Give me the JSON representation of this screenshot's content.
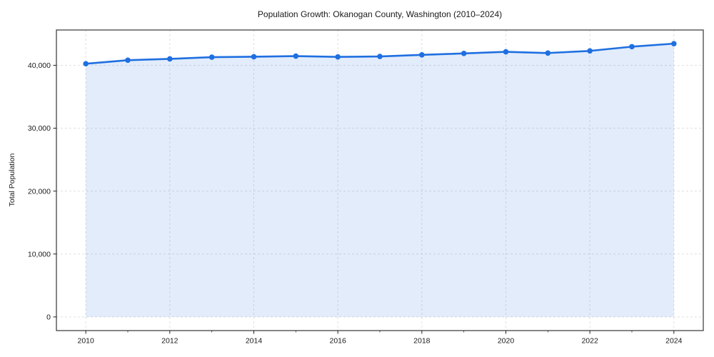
{
  "chart_data": {
    "type": "line",
    "title": "Population Growth: Okanogan County, Washington (2010–2024)",
    "xlabel": "",
    "ylabel": "Total Population",
    "x": [
      2010,
      2011,
      2012,
      2013,
      2014,
      2015,
      2016,
      2017,
      2018,
      2019,
      2020,
      2021,
      2022,
      2023,
      2024
    ],
    "series": [
      {
        "name": "Total Population",
        "values": [
          40250,
          40810,
          41020,
          41290,
          41360,
          41460,
          41330,
          41410,
          41660,
          41890,
          42140,
          41950,
          42290,
          42960,
          43440
        ]
      }
    ],
    "xticks": [
      2010,
      2012,
      2014,
      2016,
      2018,
      2020,
      2022,
      2024
    ],
    "xtick_labels": [
      "2010",
      "2012",
      "2014",
      "2016",
      "2018",
      "2020",
      "2022",
      "2024"
    ],
    "minor_xticks": [
      2011,
      2013,
      2015,
      2017,
      2019,
      2021,
      2023
    ],
    "yticks": [
      0,
      10000,
      20000,
      30000,
      40000
    ],
    "ytick_labels": [
      "0",
      "10,000",
      "20,000",
      "30,000",
      "40,000"
    ],
    "xlim": [
      2009.3,
      2024.7
    ],
    "ylim": [
      -2172,
      45612
    ],
    "grid": true,
    "legend": false,
    "marker": "circle",
    "colors": {
      "line": "#1f6fe0",
      "marker": "#1f6fe0",
      "fill": "rgba(31,111,224,0.13)",
      "grid": "#dcdcdc",
      "axis": "#222222",
      "text": "#1a1a1a"
    }
  }
}
